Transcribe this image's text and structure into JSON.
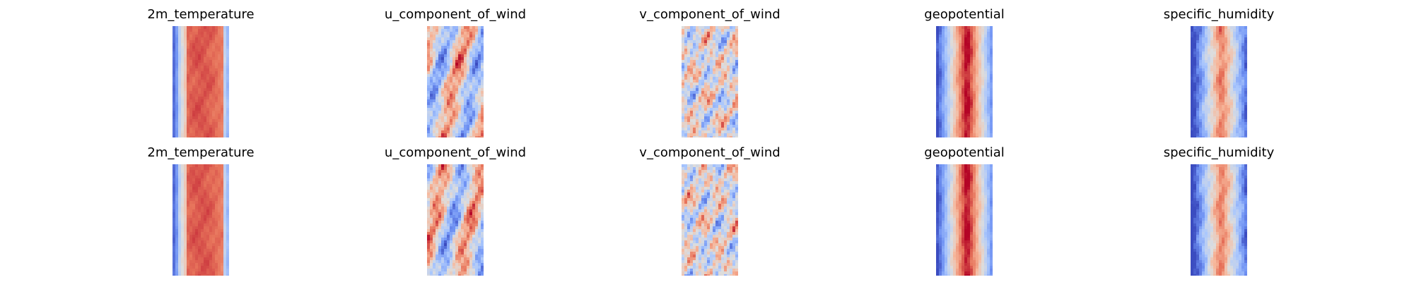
{
  "chart_data": {
    "type": "heatmap",
    "colormap": "coolwarm",
    "colormap_stops": [
      "#3b4cc0",
      "#6f92f3",
      "#aac7fd",
      "#dddddd",
      "#f7b89c",
      "#e7745b",
      "#b40426"
    ],
    "axes_visible": false,
    "rows": 2,
    "columns": 5,
    "panels": [
      {
        "row": 0,
        "col": 0,
        "title": "2m_temperature",
        "field": "temperature"
      },
      {
        "row": 0,
        "col": 1,
        "title": "u_component_of_wind",
        "field": "u_wind"
      },
      {
        "row": 0,
        "col": 2,
        "title": "v_component_of_wind",
        "field": "v_wind"
      },
      {
        "row": 0,
        "col": 3,
        "title": "geopotential",
        "field": "geopotential"
      },
      {
        "row": 0,
        "col": 4,
        "title": "specific_humidity",
        "field": "humidity"
      },
      {
        "row": 1,
        "col": 0,
        "title": "2m_temperature",
        "field": "temperature"
      },
      {
        "row": 1,
        "col": 1,
        "title": "u_component_of_wind",
        "field": "u_wind"
      },
      {
        "row": 1,
        "col": 2,
        "title": "v_component_of_wind",
        "field": "v_wind"
      },
      {
        "row": 1,
        "col": 3,
        "title": "geopotential",
        "field": "geopotential"
      },
      {
        "row": 1,
        "col": 4,
        "title": "specific_humidity",
        "field": "humidity"
      }
    ]
  }
}
